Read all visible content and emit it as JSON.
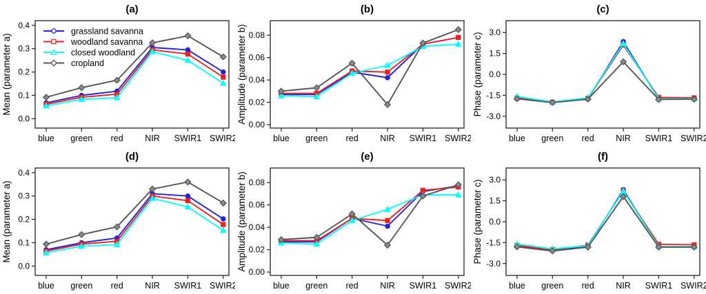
{
  "chart_data": [
    {
      "id": "a",
      "type": "line",
      "title": "(a)",
      "ylabel": "Mean (parameter a)",
      "categories": [
        "blue",
        "green",
        "red",
        "NIR",
        "SWIR1",
        "SWIR2"
      ],
      "ylim": [
        -0.04,
        0.42
      ],
      "yticks": [
        0.0,
        0.1,
        0.2,
        0.3,
        0.4
      ],
      "ytick_labels": [
        "0.0",
        "0.1",
        "0.2",
        "0.3",
        "0.4"
      ],
      "grid": false,
      "has_legend": true,
      "legend_position": "top-left",
      "series": [
        {
          "name": "grassland savanna",
          "color": "#2222dd",
          "marker": "circle",
          "values": [
            0.068,
            0.1,
            0.118,
            0.305,
            0.295,
            0.2
          ]
        },
        {
          "name": "woodland savanna",
          "color": "#ee2020",
          "marker": "square",
          "values": [
            0.062,
            0.092,
            0.105,
            0.295,
            0.277,
            0.178
          ]
        },
        {
          "name": "closed woodland",
          "color": "#00ffff",
          "marker": "triangle",
          "values": [
            0.055,
            0.083,
            0.09,
            0.287,
            0.25,
            0.152
          ]
        },
        {
          "name": "cropland",
          "color": "#555555",
          "marker": "diamond",
          "values": [
            0.092,
            0.133,
            0.165,
            0.325,
            0.355,
            0.265
          ]
        }
      ]
    },
    {
      "id": "b",
      "type": "line",
      "title": "(b)",
      "ylabel": "Amplitude (parameter b)",
      "categories": [
        "blue",
        "green",
        "red",
        "NIR",
        "SWIR1",
        "SWIR2"
      ],
      "ylim": [
        -0.003,
        0.093
      ],
      "yticks": [
        0.0,
        0.02,
        0.04,
        0.06,
        0.08
      ],
      "ytick_labels": [
        "0.00",
        "0.02",
        "0.04",
        "0.06",
        "0.08"
      ],
      "grid": false,
      "has_legend": false,
      "series": [
        {
          "name": "grassland savanna",
          "color": "#2222dd",
          "marker": "circle",
          "values": [
            0.027,
            0.027,
            0.047,
            0.042,
            0.072,
            0.078
          ]
        },
        {
          "name": "woodland savanna",
          "color": "#ee2020",
          "marker": "square",
          "values": [
            0.028,
            0.028,
            0.048,
            0.047,
            0.072,
            0.078
          ]
        },
        {
          "name": "closed woodland",
          "color": "#00ffff",
          "marker": "triangle",
          "values": [
            0.026,
            0.025,
            0.046,
            0.053,
            0.07,
            0.072
          ]
        },
        {
          "name": "cropland",
          "color": "#555555",
          "marker": "diamond",
          "values": [
            0.03,
            0.033,
            0.055,
            0.018,
            0.073,
            0.085
          ]
        }
      ]
    },
    {
      "id": "c",
      "type": "line",
      "title": "(c)",
      "ylabel": "Phase (parameter c)",
      "categories": [
        "blue",
        "green",
        "red",
        "NIR",
        "SWIR1",
        "SWIR2"
      ],
      "ylim": [
        -3.85,
        3.85
      ],
      "yticks": [
        -3.0,
        -1.5,
        0.0,
        1.5,
        3.0
      ],
      "ytick_labels": [
        "-3.0",
        "-1.5",
        "0.0",
        "1.5",
        "3.0"
      ],
      "grid": false,
      "has_legend": false,
      "series": [
        {
          "name": "grassland savanna",
          "color": "#2222dd",
          "marker": "circle",
          "values": [
            -1.7,
            -2.0,
            -1.75,
            2.35,
            -1.78,
            -1.78
          ]
        },
        {
          "name": "woodland savanna",
          "color": "#ee2020",
          "marker": "square",
          "values": [
            -1.7,
            -2.0,
            -1.72,
            2.1,
            -1.65,
            -1.68
          ]
        },
        {
          "name": "closed woodland",
          "color": "#00ffff",
          "marker": "triangle",
          "values": [
            -1.58,
            -1.98,
            -1.68,
            2.2,
            -1.75,
            -1.75
          ]
        },
        {
          "name": "cropland",
          "color": "#555555",
          "marker": "diamond",
          "values": [
            -1.75,
            -2.02,
            -1.78,
            0.9,
            -1.8,
            -1.78
          ]
        }
      ]
    },
    {
      "id": "d",
      "type": "line",
      "title": "(d)",
      "ylabel": "Mean (parameter a)",
      "categories": [
        "blue",
        "green",
        "red",
        "NIR",
        "SWIR1",
        "SWIR2"
      ],
      "ylim": [
        -0.04,
        0.42
      ],
      "yticks": [
        0.0,
        0.1,
        0.2,
        0.3,
        0.4
      ],
      "ytick_labels": [
        "0.0",
        "0.1",
        "0.2",
        "0.3",
        "0.4"
      ],
      "grid": false,
      "has_legend": false,
      "series": [
        {
          "name": "grassland savanna",
          "color": "#2222dd",
          "marker": "circle",
          "values": [
            0.07,
            0.1,
            0.12,
            0.31,
            0.3,
            0.202
          ]
        },
        {
          "name": "woodland savanna",
          "color": "#ee2020",
          "marker": "square",
          "values": [
            0.064,
            0.094,
            0.106,
            0.3,
            0.28,
            0.178
          ]
        },
        {
          "name": "closed woodland",
          "color": "#00ffff",
          "marker": "triangle",
          "values": [
            0.057,
            0.085,
            0.092,
            0.29,
            0.253,
            0.153
          ]
        },
        {
          "name": "cropland",
          "color": "#555555",
          "marker": "diamond",
          "values": [
            0.094,
            0.135,
            0.168,
            0.33,
            0.36,
            0.27
          ]
        }
      ]
    },
    {
      "id": "e",
      "type": "line",
      "title": "(e)",
      "ylabel": "Amplitude (parameter b)",
      "categories": [
        "blue",
        "green",
        "red",
        "NIR",
        "SWIR1",
        "SWIR2"
      ],
      "ylim": [
        -0.003,
        0.093
      ],
      "yticks": [
        0.0,
        0.02,
        0.04,
        0.06,
        0.08
      ],
      "ytick_labels": [
        "0.00",
        "0.02",
        "0.04",
        "0.06",
        "0.08"
      ],
      "grid": false,
      "has_legend": false,
      "series": [
        {
          "name": "grassland savanna",
          "color": "#2222dd",
          "marker": "circle",
          "values": [
            0.027,
            0.027,
            0.048,
            0.041,
            0.072,
            0.077
          ]
        },
        {
          "name": "woodland savanna",
          "color": "#ee2020",
          "marker": "square",
          "values": [
            0.028,
            0.028,
            0.048,
            0.046,
            0.073,
            0.076
          ]
        },
        {
          "name": "closed woodland",
          "color": "#00ffff",
          "marker": "triangle",
          "values": [
            0.026,
            0.025,
            0.046,
            0.056,
            0.069,
            0.069
          ]
        },
        {
          "name": "cropland",
          "color": "#555555",
          "marker": "diamond",
          "values": [
            0.029,
            0.031,
            0.052,
            0.024,
            0.068,
            0.078
          ]
        }
      ]
    },
    {
      "id": "f",
      "type": "line",
      "title": "(f)",
      "ylabel": "Phase (parameter c)",
      "categories": [
        "blue",
        "green",
        "red",
        "NIR",
        "SWIR1",
        "SWIR2"
      ],
      "ylim": [
        -3.85,
        3.85
      ],
      "yticks": [
        -3.0,
        -1.5,
        0.0,
        1.5,
        3.0
      ],
      "ytick_labels": [
        "-3.0",
        "-1.5",
        "0.0",
        "1.5",
        "3.0"
      ],
      "grid": false,
      "has_legend": false,
      "series": [
        {
          "name": "grassland savanna",
          "color": "#2222dd",
          "marker": "circle",
          "values": [
            -1.78,
            -2.05,
            -1.8,
            2.3,
            -1.8,
            -1.8
          ]
        },
        {
          "name": "woodland savanna",
          "color": "#ee2020",
          "marker": "square",
          "values": [
            -1.7,
            -2.0,
            -1.68,
            2.2,
            -1.62,
            -1.65
          ]
        },
        {
          "name": "closed woodland",
          "color": "#00ffff",
          "marker": "triangle",
          "values": [
            -1.6,
            -1.95,
            -1.72,
            2.2,
            -1.78,
            -1.78
          ]
        },
        {
          "name": "cropland",
          "color": "#555555",
          "marker": "diamond",
          "values": [
            -1.8,
            -2.1,
            -1.82,
            1.8,
            -1.82,
            -1.82
          ]
        }
      ]
    }
  ],
  "style": {
    "axis_color": "#222222",
    "text_color": "#000000",
    "background": "#ffffff",
    "diamond_fill": "#8c8c8c",
    "legend_marker_fill": "#ffffff"
  }
}
